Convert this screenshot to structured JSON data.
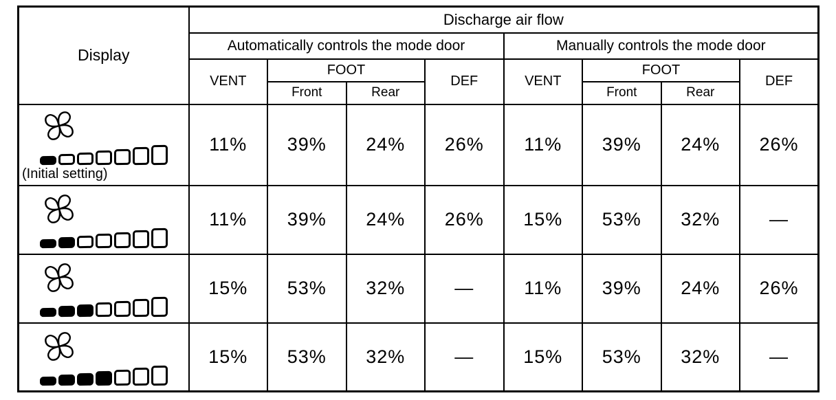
{
  "page": {
    "background": "#ffffff",
    "text_color": "#000000",
    "border_color": "#000000"
  },
  "table": {
    "display_header": "Display",
    "top_header": "Discharge air flow",
    "groups": [
      {
        "label": "Automatically controls the mode door"
      },
      {
        "label": "Manually controls the mode door"
      }
    ],
    "columns": {
      "vent": "VENT",
      "foot": "FOOT",
      "foot_front": "Front",
      "foot_rear": "Rear",
      "def": "DEF"
    },
    "rows": [
      {
        "display": {
          "icon": "fan-icon",
          "bars_total": 7,
          "bars_filled": 1,
          "caption": "(Initial setting)"
        },
        "auto": {
          "vent": "11%",
          "foot_front": "39%",
          "foot_rear": "24%",
          "def": "26%"
        },
        "manual": {
          "vent": "11%",
          "foot_front": "39%",
          "foot_rear": "24%",
          "def": "26%"
        }
      },
      {
        "display": {
          "icon": "fan-icon",
          "bars_total": 7,
          "bars_filled": 2
        },
        "auto": {
          "vent": "11%",
          "foot_front": "39%",
          "foot_rear": "24%",
          "def": "26%"
        },
        "manual": {
          "vent": "15%",
          "foot_front": "53%",
          "foot_rear": "32%",
          "def": "—"
        }
      },
      {
        "display": {
          "icon": "fan-icon",
          "bars_total": 7,
          "bars_filled": 3
        },
        "auto": {
          "vent": "15%",
          "foot_front": "53%",
          "foot_rear": "32%",
          "def": "—"
        },
        "manual": {
          "vent": "11%",
          "foot_front": "39%",
          "foot_rear": "24%",
          "def": "26%"
        }
      },
      {
        "display": {
          "icon": "fan-icon",
          "bars_total": 7,
          "bars_filled": 4
        },
        "auto": {
          "vent": "15%",
          "foot_front": "53%",
          "foot_rear": "32%",
          "def": "—"
        },
        "manual": {
          "vent": "15%",
          "foot_front": "53%",
          "foot_rear": "32%",
          "def": "—"
        }
      }
    ]
  }
}
